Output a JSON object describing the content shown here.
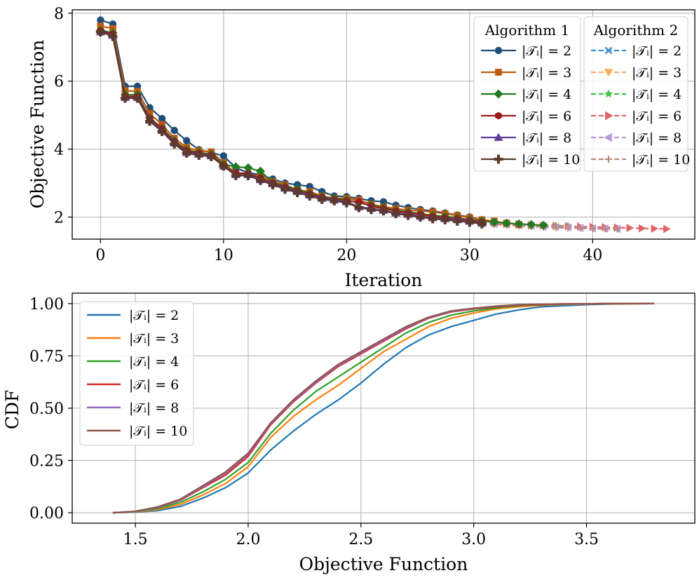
{
  "chart_data": [
    {
      "type": "line",
      "xlabel": "Iteration",
      "ylabel": "Objective Function",
      "xlim": [
        -2.3,
        48.3
      ],
      "ylim": [
        1.35,
        8.1
      ],
      "xticks": [
        0,
        10,
        20,
        30,
        40
      ],
      "yticks": [
        2,
        4,
        6,
        8
      ],
      "grid": true,
      "legend_placement": "top-right",
      "legend_groups": [
        {
          "title": "Algorithm 1",
          "entries": [
            "|𝒯ᵢ| = 2",
            "|𝒯ᵢ| = 3",
            "|𝒯ᵢ| = 4",
            "|𝒯ᵢ| = 6",
            "|𝒯ᵢ| = 8",
            "|𝒯ᵢ| = 10"
          ]
        },
        {
          "title": "Algorithm 2",
          "entries": [
            "|𝒯ᵢ| = 2",
            "|𝒯ᵢ| = 3",
            "|𝒯ᵢ| = 4",
            "|𝒯ᵢ| = 6",
            "|𝒯ᵢ| = 8",
            "|𝒯ᵢ| = 10"
          ]
        }
      ],
      "series": [
        {
          "name": "|𝒯ᵢ| = 2",
          "algorithm": "Algorithm 1",
          "color": "#1f4e79",
          "marker": "circle",
          "values": [
            7.8,
            7.68,
            5.85,
            5.85,
            5.22,
            4.9,
            4.55,
            4.25,
            3.98,
            3.9,
            3.8,
            3.45,
            3.3,
            3.25,
            3.12,
            3.0,
            2.95,
            2.9,
            2.75,
            2.62,
            2.6,
            2.55,
            2.48,
            2.45,
            2.35,
            2.28,
            2.22,
            2.18,
            2.12,
            2.06,
            2.0,
            1.92
          ]
        },
        {
          "name": "|𝒯ᵢ| = 3",
          "algorithm": "Algorithm 1",
          "color": "#c05a0a",
          "marker": "square",
          "values": [
            7.62,
            7.55,
            5.72,
            5.7,
            5.05,
            4.72,
            4.32,
            4.05,
            3.95,
            3.92,
            3.6,
            3.28,
            3.25,
            3.2,
            3.05,
            2.95,
            2.8,
            2.75,
            2.62,
            2.55,
            2.55,
            2.5,
            2.38,
            2.3,
            2.25,
            2.2,
            2.18,
            2.15,
            2.1,
            2.05,
            1.98,
            1.92,
            1.88,
            1.82,
            1.78
          ]
        },
        {
          "name": "|𝒯ᵢ| = 4",
          "algorithm": "Algorithm 1",
          "color": "#237a23",
          "marker": "diamond",
          "values": [
            7.5,
            7.42,
            5.6,
            5.6,
            4.92,
            4.62,
            4.25,
            3.98,
            3.9,
            3.85,
            3.55,
            3.48,
            3.45,
            3.35,
            3.02,
            2.9,
            2.82,
            2.7,
            2.6,
            2.55,
            2.5,
            2.42,
            2.35,
            2.28,
            2.2,
            2.15,
            2.1,
            2.05,
            2.02,
            1.98,
            1.92,
            1.88,
            1.85,
            1.82,
            1.8,
            1.78,
            1.76
          ]
        },
        {
          "name": "|𝒯ᵢ| = 6",
          "algorithm": "Algorithm 1",
          "color": "#9b1b1b",
          "marker": "hexagon",
          "values": [
            7.48,
            7.38,
            5.55,
            5.55,
            4.9,
            4.6,
            4.22,
            3.95,
            3.88,
            3.82,
            3.52,
            3.3,
            3.28,
            3.15,
            3.0,
            2.88,
            2.78,
            2.68,
            2.58,
            2.52,
            2.48,
            2.45,
            2.32,
            2.25,
            2.18,
            2.12,
            2.08,
            2.02,
            1.98,
            1.95,
            1.9,
            1.85
          ]
        },
        {
          "name": "|𝒯ᵢ| = 8",
          "algorithm": "Algorithm 1",
          "color": "#5e3c99",
          "marker": "triangle-up",
          "values": [
            7.45,
            7.35,
            5.52,
            5.52,
            4.85,
            4.55,
            4.18,
            3.9,
            3.85,
            3.8,
            3.5,
            3.25,
            3.25,
            3.1,
            2.98,
            2.85,
            2.75,
            2.65,
            2.55,
            2.5,
            2.45,
            2.3,
            2.25,
            2.2,
            2.12,
            2.08,
            2.02,
            1.98,
            1.95,
            1.92,
            1.88,
            1.82
          ]
        },
        {
          "name": "|𝒯ᵢ| = 10",
          "algorithm": "Algorithm 1",
          "color": "#5b3a29",
          "marker": "plus",
          "values": [
            7.45,
            7.32,
            5.5,
            5.5,
            4.82,
            4.52,
            4.15,
            3.88,
            3.82,
            3.78,
            3.5,
            3.22,
            3.22,
            3.08,
            2.95,
            2.82,
            2.72,
            2.62,
            2.52,
            2.48,
            2.42,
            2.28,
            2.22,
            2.18,
            2.1,
            2.05,
            2.0,
            1.95,
            1.92,
            1.88,
            1.85,
            1.8
          ]
        },
        {
          "name": "|𝒯ᵢ| = 2",
          "algorithm": "Algorithm 2",
          "color": "#3c8ed4",
          "marker": "x",
          "x_start": 31,
          "values": [
            1.85,
            1.82,
            1.8,
            1.78,
            1.76,
            1.74
          ]
        },
        {
          "name": "|𝒯ᵢ| = 3",
          "algorithm": "Algorithm 2",
          "color": "#fdae61",
          "marker": "triangle-down",
          "x_start": 34,
          "values": [
            1.78,
            1.76,
            1.74
          ]
        },
        {
          "name": "|𝒯ᵢ| = 4",
          "algorithm": "Algorithm 2",
          "color": "#42c142",
          "marker": "star",
          "x_start": 36,
          "values": [
            1.76,
            1.75,
            1.74
          ]
        },
        {
          "name": "|𝒯ᵢ| = 6",
          "algorithm": "Algorithm 2",
          "color": "#e06666",
          "marker": "triangle-right",
          "x_start": 31,
          "values": [
            1.85,
            1.82,
            1.8,
            1.78,
            1.76,
            1.75,
            1.74,
            1.73,
            1.72,
            1.71,
            1.7,
            1.69,
            1.68,
            1.67,
            1.66,
            1.65
          ]
        },
        {
          "name": "|𝒯ᵢ| = 8",
          "algorithm": "Algorithm 2",
          "color": "#b49bd4",
          "marker": "triangle-left",
          "x_start": 31,
          "values": [
            1.84,
            1.8,
            1.78,
            1.76,
            1.74,
            1.72,
            1.71,
            1.7,
            1.68,
            1.67,
            1.66,
            1.65
          ]
        },
        {
          "name": "|𝒯ᵢ| = 10",
          "algorithm": "Algorithm 2",
          "color": "#c0877a",
          "marker": "plus-small",
          "x_start": 31,
          "values": [
            1.8,
            1.78,
            1.76,
            1.74,
            1.72,
            1.7,
            1.69,
            1.68,
            1.67,
            1.66,
            1.65,
            1.64
          ]
        }
      ]
    },
    {
      "type": "line",
      "subtype": "cdf",
      "xlabel": "Objective Function",
      "ylabel": "CDF",
      "xlim": [
        1.22,
        3.98
      ],
      "ylim": [
        -0.05,
        1.05
      ],
      "xticks": [
        "1.5",
        "2.0",
        "2.5",
        "3.0",
        "3.5"
      ],
      "yticks": [
        "0.00",
        "0.25",
        "0.50",
        "0.75",
        "1.00"
      ],
      "grid": true,
      "legend_placement": "top-left",
      "x": [
        1.4,
        1.5,
        1.6,
        1.7,
        1.8,
        1.9,
        2.0,
        2.1,
        2.2,
        2.3,
        2.4,
        2.5,
        2.6,
        2.7,
        2.8,
        2.9,
        3.0,
        3.1,
        3.2,
        3.3,
        3.4,
        3.5,
        3.6,
        3.8
      ],
      "series": [
        {
          "name": "|𝒯ᵢ| = 2",
          "color": "#1f77b4",
          "values": [
            0,
            0.003,
            0.01,
            0.03,
            0.07,
            0.12,
            0.19,
            0.3,
            0.39,
            0.47,
            0.54,
            0.62,
            0.71,
            0.79,
            0.85,
            0.89,
            0.92,
            0.95,
            0.97,
            0.985,
            0.99,
            0.995,
            0.998,
            1.0
          ]
        },
        {
          "name": "|𝒯ᵢ| = 3",
          "color": "#ff7f0e",
          "values": [
            0,
            0.004,
            0.015,
            0.04,
            0.085,
            0.14,
            0.22,
            0.36,
            0.46,
            0.54,
            0.61,
            0.69,
            0.77,
            0.83,
            0.89,
            0.93,
            0.955,
            0.975,
            0.985,
            0.992,
            0.996,
            0.998,
            0.999,
            1.0
          ]
        },
        {
          "name": "|𝒯ᵢ| = 4",
          "color": "#2ca02c",
          "values": [
            0,
            0.005,
            0.02,
            0.05,
            0.1,
            0.16,
            0.24,
            0.38,
            0.49,
            0.58,
            0.65,
            0.72,
            0.79,
            0.86,
            0.91,
            0.945,
            0.965,
            0.98,
            0.99,
            0.995,
            0.997,
            0.999,
            1.0,
            1.0
          ]
        },
        {
          "name": "|𝒯ᵢ| = 6",
          "color": "#d62728",
          "values": [
            0,
            0.006,
            0.025,
            0.06,
            0.12,
            0.18,
            0.27,
            0.42,
            0.53,
            0.62,
            0.7,
            0.76,
            0.82,
            0.88,
            0.93,
            0.96,
            0.975,
            0.985,
            0.993,
            0.996,
            0.998,
            0.999,
            1.0,
            1.0
          ]
        },
        {
          "name": "|𝒯ᵢ| = 8",
          "color": "#9467bd",
          "values": [
            0,
            0.006,
            0.025,
            0.062,
            0.125,
            0.19,
            0.28,
            0.425,
            0.535,
            0.625,
            0.705,
            0.765,
            0.825,
            0.885,
            0.932,
            0.962,
            0.977,
            0.987,
            0.994,
            0.997,
            0.998,
            0.999,
            1.0,
            1.0
          ]
        },
        {
          "name": "|𝒯ᵢ| = 10",
          "color": "#8c564b",
          "values": [
            0,
            0.007,
            0.028,
            0.065,
            0.13,
            0.195,
            0.285,
            0.43,
            0.54,
            0.63,
            0.71,
            0.77,
            0.83,
            0.89,
            0.935,
            0.965,
            0.978,
            0.988,
            0.995,
            0.997,
            0.999,
            0.9995,
            1.0,
            1.0
          ]
        }
      ]
    }
  ]
}
